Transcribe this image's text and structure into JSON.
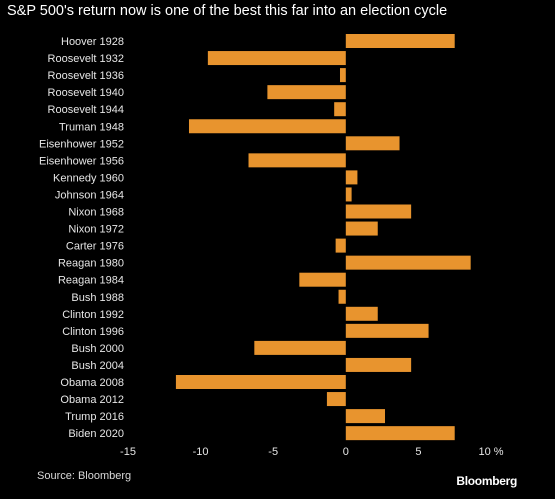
{
  "colors": {
    "background": "#000000",
    "bar": "#e8942e",
    "text": "#e6e6e6",
    "title": "#ffffff"
  },
  "brand": "Bloomberg",
  "source": "Source: Bloomberg",
  "chart_data": {
    "type": "bar",
    "orientation": "horizontal",
    "title": "S&P 500's return now is one of the best this far into an election cycle",
    "xlabel": "",
    "ylabel": "",
    "unit": "%",
    "xlim": [
      -15,
      10
    ],
    "xticks": [
      -15,
      -10,
      -5,
      0,
      5,
      10
    ],
    "xtick_labels": [
      "-15",
      "-10",
      "-5",
      "0",
      "5",
      "10 %"
    ],
    "grid": false,
    "legend": "none",
    "categories": [
      "Hoover 1928",
      "Roosevelt 1932",
      "Roosevelt 1936",
      "Roosevelt 1940",
      "Roosevelt 1944",
      "Truman 1948",
      "Eisenhower 1952",
      "Eisenhower 1956",
      "Kennedy 1960",
      "Johnson 1964",
      "Nixon 1968",
      "Nixon 1972",
      "Carter 1976",
      "Reagan 1980",
      "Reagan 1984",
      "Bush 1988",
      "Clinton 1992",
      "Clinton 1996",
      "Bush 2000",
      "Bush 2004",
      "Obama 2008",
      "Obama 2012",
      "Trump 2016",
      "Biden 2020"
    ],
    "values": [
      7.5,
      -9.5,
      -0.4,
      -5.4,
      -0.8,
      -10.8,
      3.7,
      -6.7,
      0.8,
      0.4,
      4.5,
      2.2,
      -0.7,
      8.6,
      -3.2,
      -0.5,
      2.2,
      5.7,
      -6.3,
      4.5,
      -11.7,
      -1.3,
      2.7,
      7.5
    ]
  }
}
